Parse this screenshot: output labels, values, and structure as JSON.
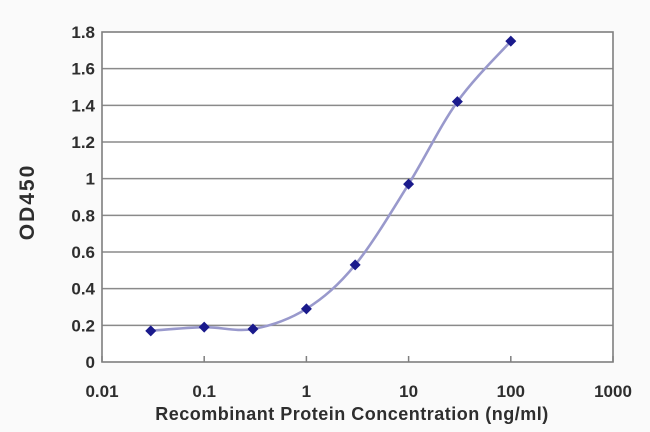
{
  "chart_data": {
    "type": "line",
    "title": "",
    "xlabel": "Recombinant Protein Concentration (ng/ml)",
    "ylabel": "OD450",
    "x_scale": "log10",
    "xlim": [
      0.01,
      1000
    ],
    "ylim": [
      0,
      1.8
    ],
    "x_ticks": [
      0.01,
      0.1,
      1,
      10,
      100,
      1000
    ],
    "x_tick_labels": [
      "0.01",
      "0.1",
      "1",
      "10",
      "100",
      "1000"
    ],
    "y_ticks": [
      0,
      0.2,
      0.4,
      0.6,
      0.8,
      1,
      1.2,
      1.4,
      1.6,
      1.8
    ],
    "y_tick_labels": [
      "0",
      "0.2",
      "0.4",
      "0.6",
      "0.8",
      "1",
      "1.2",
      "1.4",
      "1.6",
      "1.8"
    ],
    "grid": "horizontal",
    "legend": "none",
    "series": [
      {
        "name": "OD450",
        "x": [
          0.03,
          0.1,
          0.3,
          1,
          3,
          10,
          30,
          100
        ],
        "y": [
          0.17,
          0.19,
          0.18,
          0.29,
          0.53,
          0.97,
          1.42,
          1.75
        ],
        "marker": "diamond",
        "line_style": "smooth"
      }
    ],
    "colors": {
      "line": "#9999cc",
      "marker": "#1a1a8c",
      "grid": "#8a8a8a",
      "frame": "#7f7f7f",
      "text": "#2e2e2e",
      "plot_background": "#ffffff",
      "page_background": "#fafafa"
    }
  }
}
